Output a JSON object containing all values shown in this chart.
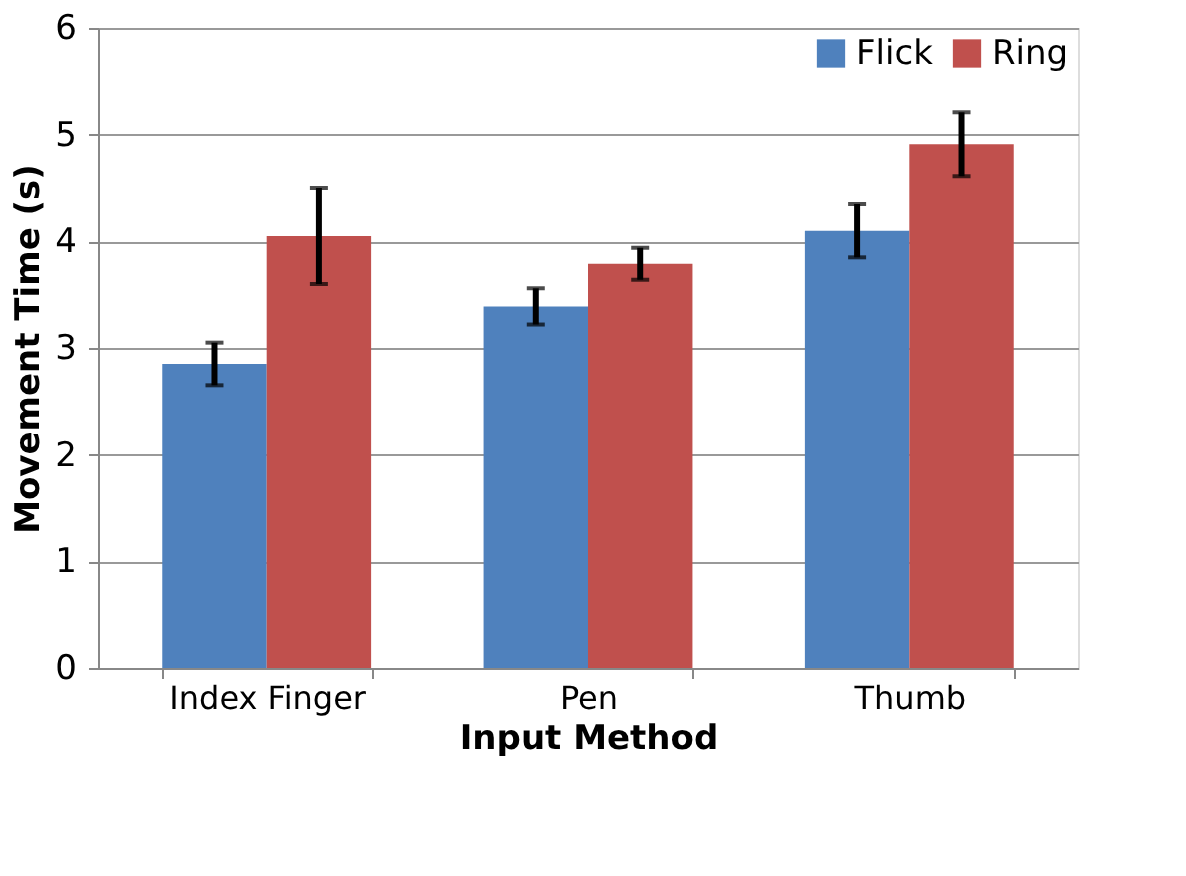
{
  "chart_data": {
    "type": "bar",
    "xlabel": "Input Method",
    "ylabel": "Movement Time (s)",
    "categories": [
      "Index Finger",
      "Pen",
      "Thumb"
    ],
    "series": [
      {
        "name": "Flick",
        "color": "#4f81bd",
        "values": [
          2.85,
          3.39,
          4.1
        ],
        "errors": [
          0.2,
          0.17,
          0.25
        ]
      },
      {
        "name": "Ring",
        "color": "#c0504d",
        "values": [
          4.05,
          3.79,
          4.91
        ],
        "errors": [
          [
            3.6,
            4.5
          ],
          0.15,
          0.3
        ]
      }
    ],
    "ylim": [
      0,
      6
    ],
    "yticks": [
      0,
      1,
      2,
      3,
      4,
      5,
      6
    ],
    "grid": "y",
    "legend": "top right"
  }
}
